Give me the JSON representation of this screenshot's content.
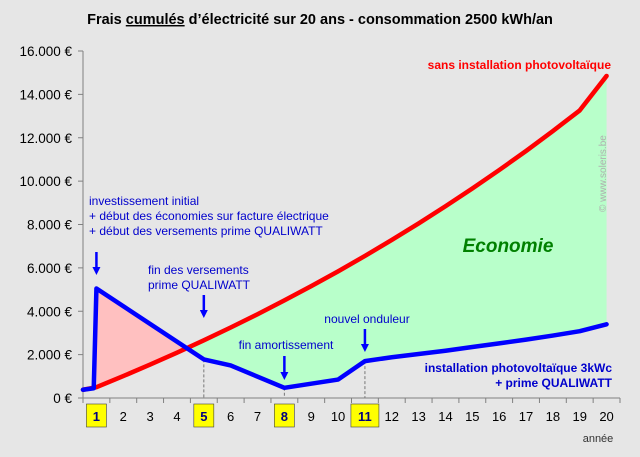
{
  "chart_data": {
    "type": "line",
    "title": {
      "pre": "Frais ",
      "underlined": "cumulés",
      "post": " d’électricité sur 20 ans  - consommation 2500 kWh/an"
    },
    "xlabel": "année",
    "ylabel": "",
    "x": [
      1,
      2,
      3,
      4,
      5,
      6,
      7,
      8,
      9,
      10,
      11,
      12,
      13,
      14,
      15,
      16,
      17,
      18,
      19,
      20
    ],
    "ylim": [
      0,
      16000
    ],
    "yticks": [
      0,
      2000,
      4000,
      6000,
      8000,
      10000,
      12000,
      14000,
      16000
    ],
    "ytick_labels": [
      "0 €",
      "2.000 €",
      "4.000 €",
      "6.000 €",
      "8.000 €",
      "10.000 €",
      "12.000 €",
      "14.000 €",
      "16.000 €"
    ],
    "xtick_labels": [
      "1",
      "2",
      "3",
      "4",
      "5",
      "6",
      "7",
      "8",
      "9",
      "10",
      "11",
      "12",
      "13",
      "14",
      "15",
      "16",
      "17",
      "18",
      "19",
      "20"
    ],
    "highlighted_x": [
      1,
      5,
      8,
      11
    ],
    "grid": false,
    "series": [
      {
        "name": "sans installation photovoltaïque",
        "color": "#ff0000",
        "points": [
          [
            0.5,
            380
          ],
          [
            1,
            500
          ],
          [
            2,
            1010
          ],
          [
            3,
            1540
          ],
          [
            4,
            2090
          ],
          [
            5,
            2660
          ],
          [
            6,
            3250
          ],
          [
            7,
            3860
          ],
          [
            8,
            4500
          ],
          [
            9,
            5160
          ],
          [
            10,
            5840
          ],
          [
            11,
            6550
          ],
          [
            12,
            7290
          ],
          [
            13,
            8050
          ],
          [
            14,
            8840
          ],
          [
            15,
            9660
          ],
          [
            16,
            10510
          ],
          [
            17,
            11390
          ],
          [
            18,
            12310
          ],
          [
            19,
            13260
          ],
          [
            20,
            14850
          ]
        ]
      },
      {
        "name": "installation photovoltaïque 3kWc\n+ prime QUALIWATT",
        "color": "#0000ff",
        "points": [
          [
            0.5,
            380
          ],
          [
            0.9,
            450
          ],
          [
            1,
            5050
          ],
          [
            5,
            1780
          ],
          [
            6,
            1500
          ],
          [
            8,
            470
          ],
          [
            9,
            660
          ],
          [
            10,
            850
          ],
          [
            11,
            1700
          ],
          [
            12,
            1880
          ],
          [
            13,
            2030
          ],
          [
            14,
            2180
          ],
          [
            15,
            2350
          ],
          [
            16,
            2520
          ],
          [
            17,
            2690
          ],
          [
            18,
            2880
          ],
          [
            19,
            3080
          ],
          [
            20,
            3400
          ]
        ]
      }
    ],
    "areas": [
      {
        "label": "",
        "color": "#ffc0c0"
      },
      {
        "label": "Economie",
        "color": "#b8ffca"
      }
    ],
    "annotations": [
      {
        "text": "investissement initial\n+ début des économies sur facture électrique\n+ début des versements prime QUALIWATT",
        "color": "#0000cc",
        "arrow_x": 1
      },
      {
        "text": "fin des versements\nprime QUALIWATT",
        "color": "#0000cc",
        "arrow_x": 5
      },
      {
        "text": "fin amortissement",
        "color": "#0000cc",
        "arrow_x": 8
      },
      {
        "text": "nouvel onduleur",
        "color": "#0000cc",
        "arrow_x": 11
      }
    ],
    "watermark": "© www.soleris.be"
  }
}
